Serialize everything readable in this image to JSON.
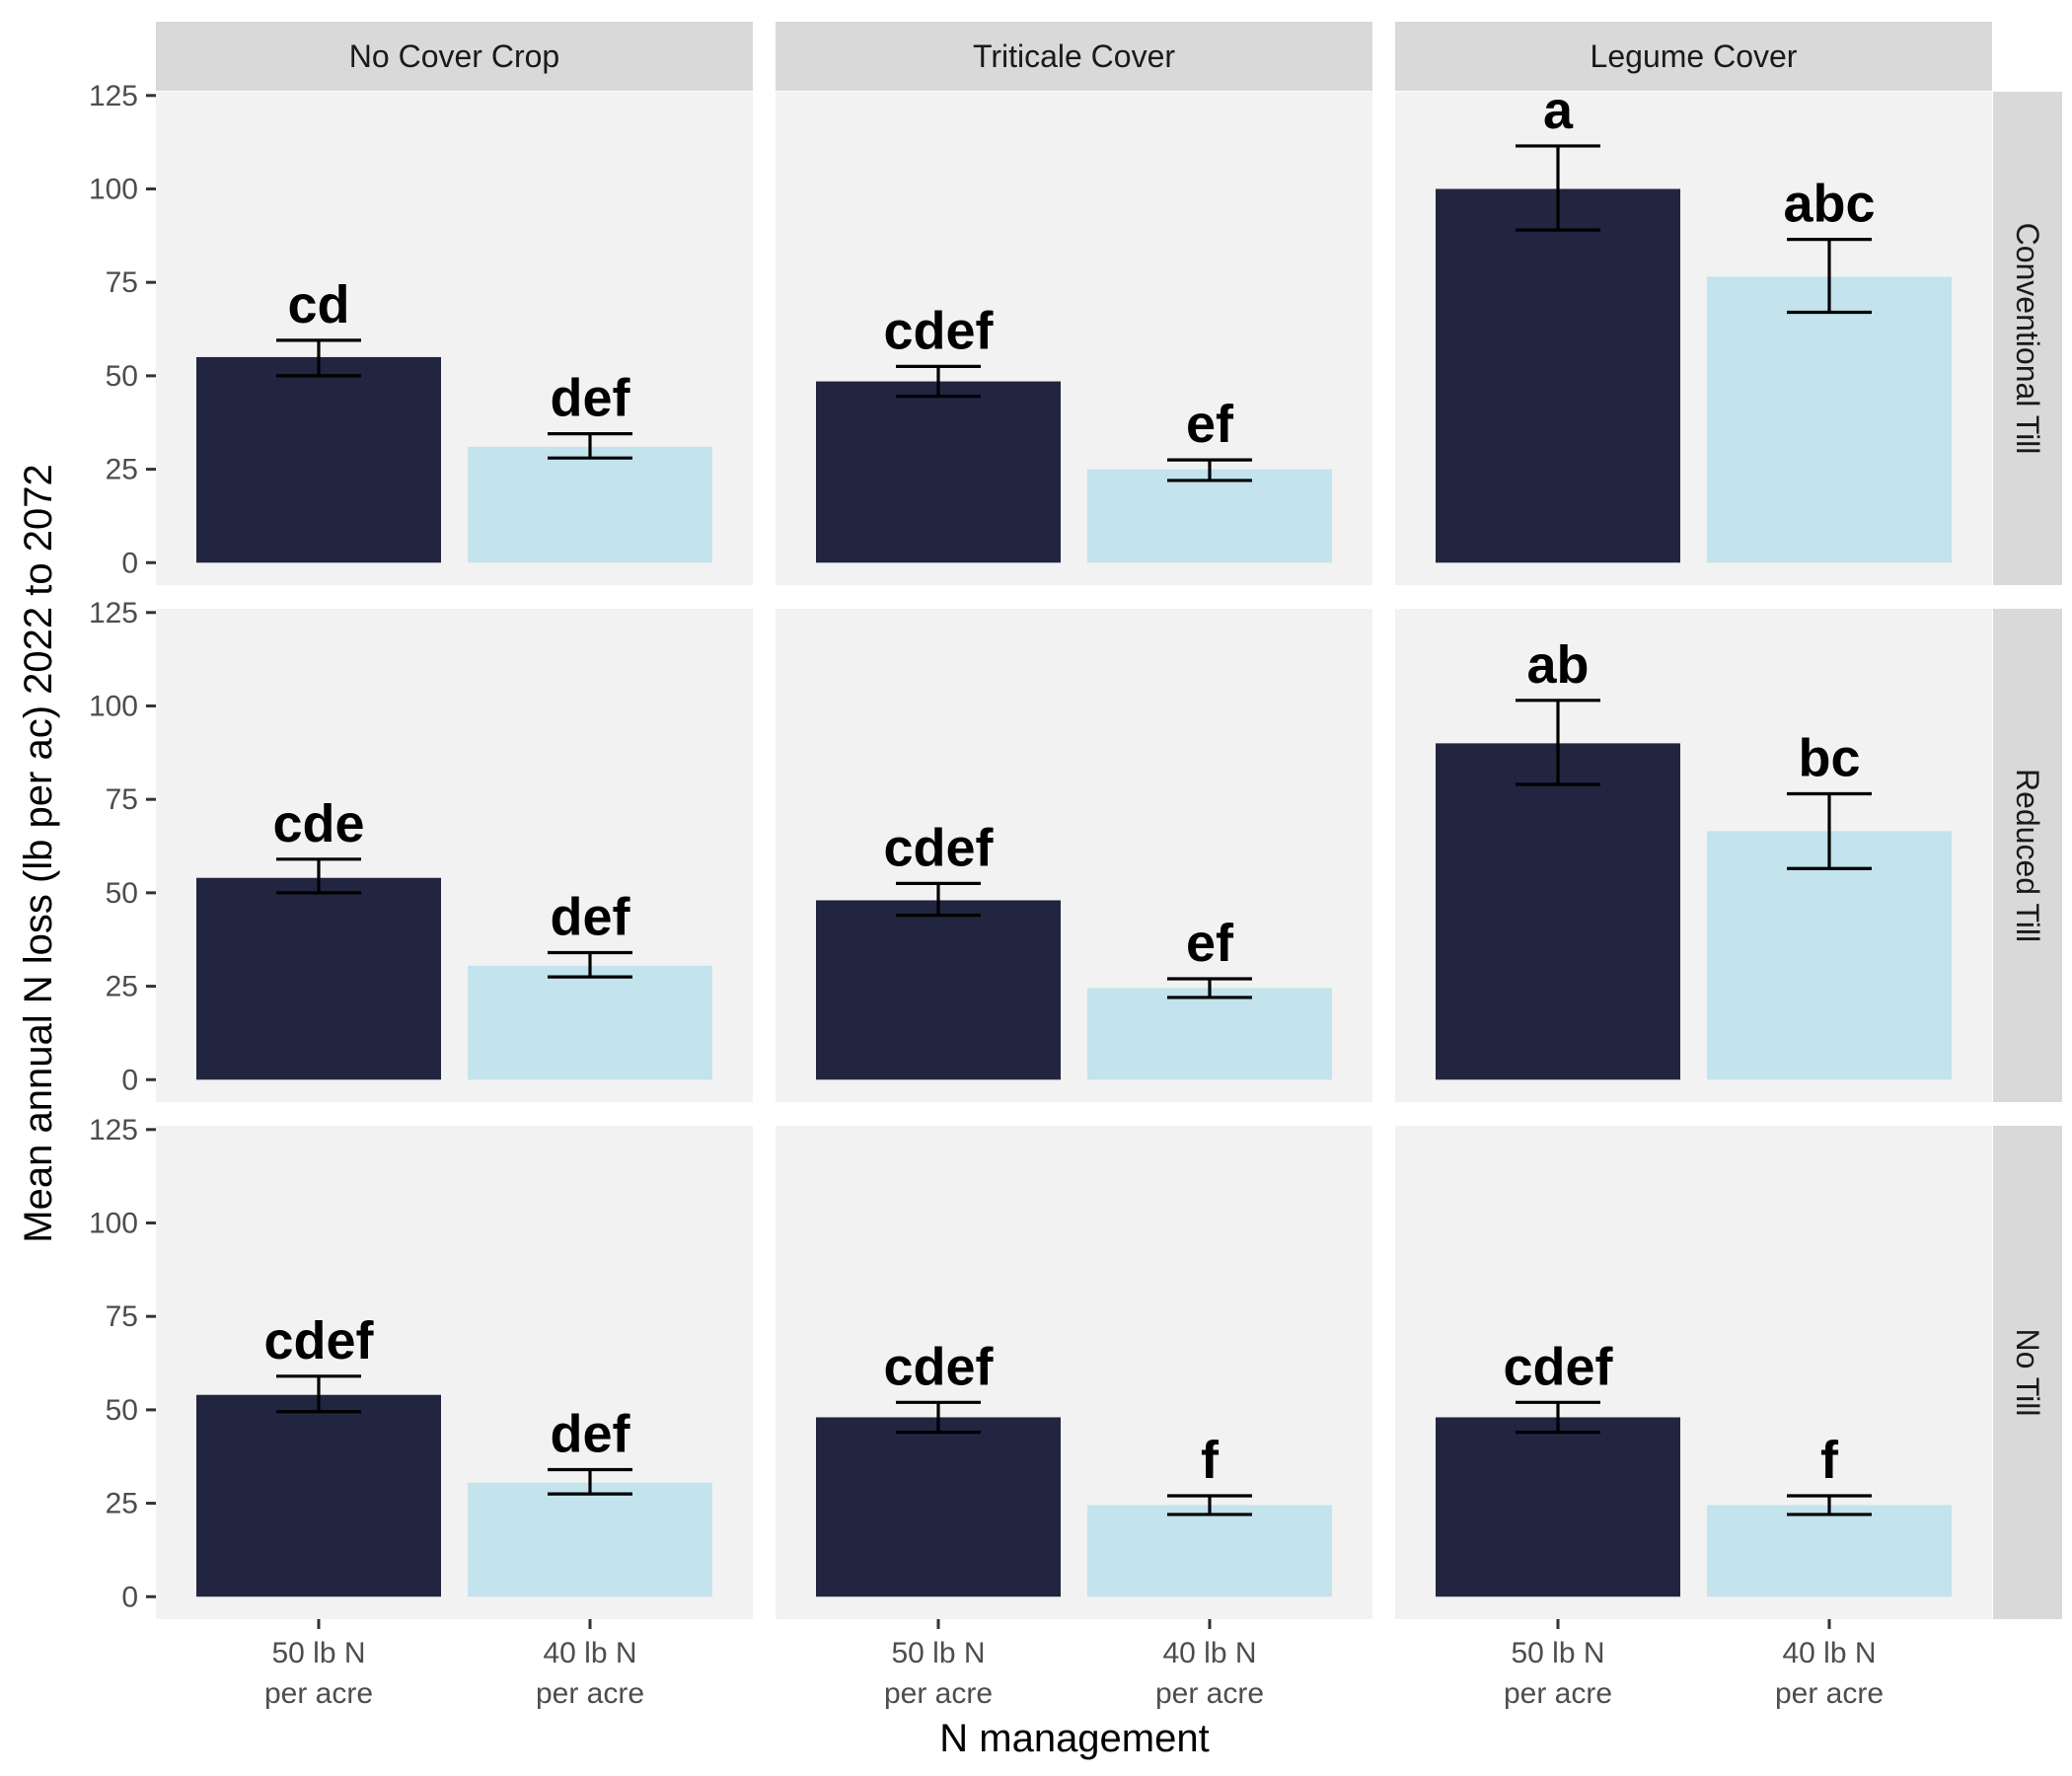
{
  "chart_data": {
    "type": "bar",
    "xlabel": "N management",
    "ylabel": "Mean annual N loss (lb per ac) 2022 to 2072",
    "ylim": [
      -6,
      126
    ],
    "yticks": [
      "0",
      "25",
      "50",
      "75",
      "100",
      "125"
    ],
    "categories": [
      {
        "line1": "50 lb N",
        "line2": "per acre"
      },
      {
        "line1": "40 lb N",
        "line2": "per acre"
      }
    ],
    "columns": [
      "No Cover Crop",
      "Triticale Cover",
      "Legume Cover"
    ],
    "rows": [
      "Conventional Till",
      "Reduced Till",
      "No Till"
    ],
    "colors": {
      "50 lb N per acre": "#212540",
      "40 lb N per acre": "#c3e3ed",
      "panel_bg": "#f2f2f2",
      "strip_bg": "#d9d9d9"
    },
    "panels": [
      {
        "row": "Conventional Till",
        "col": "No Cover Crop",
        "values": [
          55,
          31
        ],
        "err_low": [
          50,
          28
        ],
        "err_high": [
          59.5,
          34.5
        ],
        "labels": [
          "cd",
          "def"
        ]
      },
      {
        "row": "Conventional Till",
        "col": "Triticale Cover",
        "values": [
          48.5,
          25
        ],
        "err_low": [
          44.5,
          22
        ],
        "err_high": [
          52.5,
          27.5
        ],
        "labels": [
          "cdef",
          "ef"
        ]
      },
      {
        "row": "Conventional Till",
        "col": "Legume Cover",
        "values": [
          100,
          76.5
        ],
        "err_low": [
          89,
          67
        ],
        "err_high": [
          111.5,
          86.5
        ],
        "labels": [
          "a",
          "abc"
        ]
      },
      {
        "row": "Reduced Till",
        "col": "No Cover Crop",
        "values": [
          54,
          30.5
        ],
        "err_low": [
          50,
          27.5
        ],
        "err_high": [
          59,
          34
        ],
        "labels": [
          "cde",
          "def"
        ]
      },
      {
        "row": "Reduced Till",
        "col": "Triticale Cover",
        "values": [
          48,
          24.5
        ],
        "err_low": [
          44,
          22
        ],
        "err_high": [
          52.5,
          27
        ],
        "labels": [
          "cdef",
          "ef"
        ]
      },
      {
        "row": "Reduced Till",
        "col": "Legume Cover",
        "values": [
          90,
          66.5
        ],
        "err_low": [
          79,
          56.5
        ],
        "err_high": [
          101.5,
          76.5
        ],
        "labels": [
          "ab",
          "bc"
        ]
      },
      {
        "row": "No Till",
        "col": "No Cover Crop",
        "values": [
          54,
          30.5
        ],
        "err_low": [
          49.5,
          27.5
        ],
        "err_high": [
          59,
          34
        ],
        "labels": [
          "cdef",
          "def"
        ]
      },
      {
        "row": "No Till",
        "col": "Triticale Cover",
        "values": [
          48,
          24.5
        ],
        "err_low": [
          44,
          22
        ],
        "err_high": [
          52,
          27
        ],
        "labels": [
          "cdef",
          "f"
        ]
      },
      {
        "row": "No Till",
        "col": "Legume Cover",
        "values": [
          48,
          24.5
        ],
        "err_low": [
          44,
          22
        ],
        "err_high": [
          52,
          27
        ],
        "labels": [
          "cdef",
          "f"
        ]
      }
    ]
  }
}
